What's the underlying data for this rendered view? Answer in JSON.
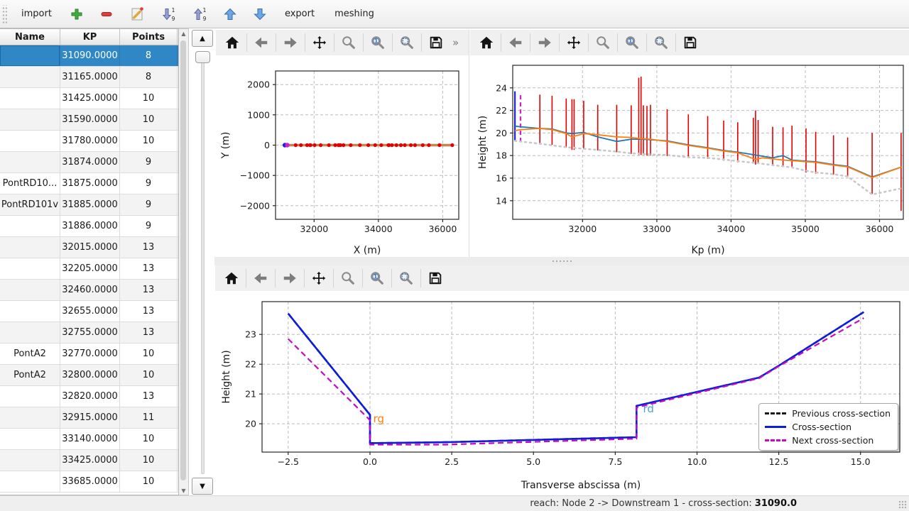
{
  "app_toolbar": {
    "import_label": "import",
    "export_label": "export",
    "meshing_label": "meshing",
    "icon_buttons": [
      "add",
      "remove",
      "edit",
      "sort-descending",
      "sort-ascending",
      "move-up",
      "move-down"
    ]
  },
  "table": {
    "columns": [
      "Name",
      "KP",
      "Points"
    ],
    "selected_index": 0,
    "selection_color": "#2f88c5",
    "rows": [
      {
        "name": "",
        "kp": "31090.0000",
        "points": "8"
      },
      {
        "name": "",
        "kp": "31165.0000",
        "points": "8"
      },
      {
        "name": "",
        "kp": "31425.0000",
        "points": "10"
      },
      {
        "name": "",
        "kp": "31590.0000",
        "points": "10"
      },
      {
        "name": "",
        "kp": "31780.0000",
        "points": "10"
      },
      {
        "name": "",
        "kp": "31874.0000",
        "points": "9"
      },
      {
        "name": "PontRD10...",
        "kp": "31875.0000",
        "points": "9"
      },
      {
        "name": "PontRD101v",
        "kp": "31885.0000",
        "points": "9"
      },
      {
        "name": "",
        "kp": "31886.0000",
        "points": "9"
      },
      {
        "name": "",
        "kp": "32015.0000",
        "points": "13"
      },
      {
        "name": "",
        "kp": "32205.0000",
        "points": "13"
      },
      {
        "name": "",
        "kp": "32460.0000",
        "points": "13"
      },
      {
        "name": "",
        "kp": "32655.0000",
        "points": "13"
      },
      {
        "name": "",
        "kp": "32755.0000",
        "points": "13"
      },
      {
        "name": "PontA2",
        "kp": "32770.0000",
        "points": "10"
      },
      {
        "name": "PontA2",
        "kp": "32800.0000",
        "points": "10"
      },
      {
        "name": "",
        "kp": "32820.0000",
        "points": "13"
      },
      {
        "name": "",
        "kp": "32915.0000",
        "points": "11"
      },
      {
        "name": "",
        "kp": "33140.0000",
        "points": "10"
      },
      {
        "name": "",
        "kp": "33425.0000",
        "points": "10"
      },
      {
        "name": "",
        "kp": "33685.0000",
        "points": "10"
      }
    ]
  },
  "plot_toolbar": {
    "buttons": [
      "home",
      "back",
      "forward",
      "pan",
      "zoom",
      "zoom-one",
      "zoom-rect",
      "save"
    ],
    "overflow_label": "»"
  },
  "status_bar": {
    "label": "reach: Node 2 -> Downstream 1 - cross-section:",
    "value": "31090.0"
  },
  "chart_data": [
    {
      "id": "plan-view",
      "type": "line",
      "xlabel": "X (m)",
      "ylabel": "Y (m)",
      "xlim": [
        30800,
        36500
      ],
      "ylim": [
        -2450,
        2450
      ],
      "xticks": [
        [
          32000,
          "32000"
        ],
        [
          34000,
          "34000"
        ],
        [
          36000,
          "36000"
        ]
      ],
      "yticks": [
        [
          -2000,
          "−2000"
        ],
        [
          -1000,
          "−1000"
        ],
        [
          0,
          "0"
        ],
        [
          1000,
          "1000"
        ],
        [
          2000,
          "2000"
        ]
      ],
      "grid": true,
      "series": [
        {
          "name": "river-axis-casing",
          "type": "line",
          "color": "#6e87a8",
          "width": 3.5,
          "points": [
            [
              31090,
              0
            ],
            [
              36300,
              0
            ]
          ]
        },
        {
          "name": "river-axis",
          "type": "line",
          "color": "#ff7f0e",
          "width": 2,
          "points": [
            [
              31090,
              0
            ],
            [
              36300,
              0
            ]
          ]
        },
        {
          "name": "cross-section-markers",
          "type": "scatter",
          "color": "#e40000",
          "r": 2.6,
          "y": 0,
          "x": [
            31425,
            31590,
            31780,
            31874,
            31886,
            32015,
            32205,
            32460,
            32655,
            32755,
            32790,
            32820,
            32915,
            33140,
            33425,
            33685,
            33900,
            34090,
            34310,
            34330,
            34420,
            34560,
            34700,
            34820,
            35010,
            35140,
            35380,
            35570,
            35900,
            36300
          ]
        },
        {
          "name": "selected-section-marker",
          "type": "scatter",
          "color": "#2222dd",
          "r": 3.2,
          "y": 0,
          "x": [
            31090
          ]
        },
        {
          "name": "next-section-marker",
          "type": "scatter",
          "color": "#cc22cc",
          "r": 3.2,
          "y": 0,
          "x": [
            31165
          ]
        }
      ]
    },
    {
      "id": "longitudinal-profile",
      "type": "line",
      "xlabel": "Kp (m)",
      "ylabel": "Height (m)",
      "xlim": [
        31060,
        36320
      ],
      "ylim": [
        12.35,
        26.0
      ],
      "xticks": [
        [
          32000,
          "32000"
        ],
        [
          33000,
          "33000"
        ],
        [
          34000,
          "34000"
        ],
        [
          35000,
          "35000"
        ],
        [
          36000,
          "36000"
        ]
      ],
      "yticks": [
        [
          14,
          "14"
        ],
        [
          16,
          "16"
        ],
        [
          18,
          "18"
        ],
        [
          20,
          "20"
        ],
        [
          22,
          "22"
        ],
        [
          24,
          "24"
        ]
      ],
      "grid": true,
      "series": [
        {
          "name": "cross-section-extents",
          "type": "vlines",
          "color": "#e40000",
          "width": 1.6,
          "lines": [
            [
              31425,
              19.1,
              23.4
            ],
            [
              31590,
              18.95,
              23.3
            ],
            [
              31780,
              18.7,
              23.05
            ],
            [
              31858,
              18.5,
              23.0
            ],
            [
              31886,
              18.5,
              23.0
            ],
            [
              32015,
              18.6,
              22.85
            ],
            [
              32205,
              18.45,
              22.5
            ],
            [
              32460,
              18.3,
              22.5
            ],
            [
              32655,
              18.15,
              22.45
            ],
            [
              32758,
              18.05,
              24.9
            ],
            [
              32788,
              18.05,
              25.0
            ],
            [
              32820,
              18.05,
              22.45
            ],
            [
              32868,
              18.0,
              22.4
            ],
            [
              32915,
              18.0,
              22.5
            ],
            [
              33140,
              17.95,
              22.1
            ],
            [
              33425,
              17.8,
              21.65
            ],
            [
              33685,
              17.7,
              21.5
            ],
            [
              33900,
              17.55,
              21.1
            ],
            [
              34090,
              17.4,
              20.95
            ],
            [
              34300,
              17.35,
              21.35
            ],
            [
              34330,
              17.2,
              22.0
            ],
            [
              34365,
              17.3,
              21.15
            ],
            [
              34560,
              17.1,
              20.55
            ],
            [
              34700,
              17.0,
              20.5
            ],
            [
              34820,
              16.9,
              20.65
            ],
            [
              35010,
              16.5,
              20.4
            ],
            [
              35140,
              16.4,
              20.1
            ],
            [
              35380,
              16.3,
              19.8
            ],
            [
              35570,
              16.1,
              19.6
            ],
            [
              35900,
              14.6,
              20.0
            ],
            [
              36290,
              13.1,
              20.0
            ]
          ]
        },
        {
          "name": "selected-section-extent",
          "type": "vlines",
          "color": "#2222dd",
          "width": 2.2,
          "lines": [
            [
              31090,
              19.3,
              23.7
            ]
          ]
        },
        {
          "name": "next-section-extent",
          "type": "vlines",
          "color": "#cc22cc",
          "width": 2.2,
          "dash": "6 4",
          "lines": [
            [
              31165,
              19.2,
              23.5
            ]
          ]
        },
        {
          "name": "bed-level",
          "type": "line",
          "color": "#c8c8c8",
          "width": 2.6,
          "dash": "2 5",
          "cap": "round",
          "points": [
            [
              31090,
              19.3
            ],
            [
              31425,
              19.05
            ],
            [
              31780,
              18.75
            ],
            [
              32015,
              18.6
            ],
            [
              32205,
              18.5
            ],
            [
              32460,
              18.35
            ],
            [
              32655,
              18.2
            ],
            [
              32915,
              18.1
            ],
            [
              33140,
              18.05
            ],
            [
              33425,
              17.85
            ],
            [
              33685,
              17.8
            ],
            [
              33900,
              17.65
            ],
            [
              34090,
              17.5
            ],
            [
              34330,
              17.35
            ],
            [
              34560,
              17.15
            ],
            [
              34700,
              17.05
            ],
            [
              34820,
              16.95
            ],
            [
              35010,
              16.65
            ],
            [
              35140,
              16.5
            ],
            [
              35380,
              16.35
            ],
            [
              35570,
              16.15
            ],
            [
              35900,
              14.55
            ],
            [
              36300,
              15.1
            ]
          ]
        },
        {
          "name": "left-bank",
          "type": "line",
          "color": "#1f77b4",
          "width": 1.8,
          "points": [
            [
              31090,
              20.6
            ],
            [
              31165,
              20.55
            ],
            [
              31425,
              20.4
            ],
            [
              31590,
              20.35
            ],
            [
              31780,
              20.0
            ],
            [
              31858,
              19.95
            ],
            [
              32015,
              20.05
            ],
            [
              32205,
              19.65
            ],
            [
              32460,
              19.25
            ],
            [
              32655,
              19.45
            ],
            [
              32790,
              19.45
            ],
            [
              32915,
              19.4
            ],
            [
              33140,
              19.3
            ],
            [
              33425,
              18.95
            ],
            [
              33685,
              18.7
            ],
            [
              33900,
              18.45
            ],
            [
              34090,
              18.3
            ],
            [
              34330,
              18.05
            ],
            [
              34420,
              17.95
            ],
            [
              34560,
              17.8
            ],
            [
              34700,
              18.0
            ],
            [
              34820,
              17.6
            ],
            [
              35010,
              17.5
            ],
            [
              35140,
              17.45
            ],
            [
              35380,
              17.2
            ],
            [
              35570,
              17.05
            ],
            [
              35900,
              16.1
            ],
            [
              36300,
              17.0
            ]
          ]
        },
        {
          "name": "right-bank",
          "type": "line",
          "color": "#ff7f0e",
          "width": 1.8,
          "points": [
            [
              31090,
              20.2
            ],
            [
              31165,
              20.3
            ],
            [
              31425,
              20.4
            ],
            [
              31590,
              20.3
            ],
            [
              31780,
              19.95
            ],
            [
              31858,
              19.65
            ],
            [
              32015,
              19.95
            ],
            [
              32205,
              19.85
            ],
            [
              32460,
              19.65
            ],
            [
              32655,
              19.6
            ],
            [
              32790,
              19.5
            ],
            [
              32915,
              19.45
            ],
            [
              33140,
              19.25
            ],
            [
              33425,
              18.9
            ],
            [
              33685,
              18.65
            ],
            [
              33900,
              18.4
            ],
            [
              34090,
              18.25
            ],
            [
              34330,
              17.65
            ],
            [
              34420,
              17.8
            ],
            [
              34560,
              17.7
            ],
            [
              34700,
              17.6
            ],
            [
              34820,
              17.55
            ],
            [
              35010,
              17.45
            ],
            [
              35140,
              17.4
            ],
            [
              35380,
              17.15
            ],
            [
              35570,
              17.0
            ],
            [
              35900,
              16.05
            ],
            [
              36300,
              17.0
            ]
          ]
        }
      ]
    },
    {
      "id": "cross-section-view",
      "type": "line",
      "xlabel": "Transverse abscissa (m)",
      "ylabel": "Height (m)",
      "xlim": [
        -3.3,
        16.2
      ],
      "ylim": [
        19.05,
        24.1
      ],
      "xticks": [
        [
          -2.5,
          "−2.5"
        ],
        [
          0,
          "0.0"
        ],
        [
          2.5,
          "2.5"
        ],
        [
          5,
          "5.0"
        ],
        [
          7.5,
          "7.5"
        ],
        [
          10,
          "10.0"
        ],
        [
          12.5,
          "12.5"
        ],
        [
          15,
          "15.0"
        ]
      ],
      "yticks": [
        [
          20,
          "20"
        ],
        [
          21,
          "21"
        ],
        [
          22,
          "22"
        ],
        [
          23,
          "23"
        ]
      ],
      "grid": true,
      "texts": [
        {
          "x": 0.1,
          "y": 20.05,
          "text": "rg",
          "color": "#ff7f0e",
          "size": 15
        },
        {
          "x": 8.35,
          "y": 20.38,
          "text": "rd",
          "color": "#4f9fd4",
          "size": 15
        }
      ],
      "series": [
        {
          "name": "previous-cross-section",
          "type": "line",
          "color": "#1a1a1a",
          "width": 2.6,
          "dash": "8 5",
          "points": [
            [
              -2.5,
              23.7
            ],
            [
              0,
              20.3
            ],
            [
              0,
              19.35
            ],
            [
              2.3,
              19.38
            ],
            [
              8.15,
              19.55
            ],
            [
              8.15,
              20.6
            ],
            [
              11.9,
              21.55
            ],
            [
              12.5,
              21.95
            ],
            [
              15.1,
              23.75
            ]
          ]
        },
        {
          "name": "current-cross-section",
          "type": "line",
          "color": "#0d1ddb",
          "width": 2.6,
          "points": [
            [
              -2.5,
              23.7
            ],
            [
              0,
              20.3
            ],
            [
              0,
              19.35
            ],
            [
              2.3,
              19.38
            ],
            [
              8.15,
              19.55
            ],
            [
              8.15,
              20.6
            ],
            [
              11.9,
              21.55
            ],
            [
              12.5,
              21.95
            ],
            [
              15.1,
              23.75
            ]
          ]
        },
        {
          "name": "next-cross-section",
          "type": "line",
          "color": "#c40ac4",
          "width": 2.2,
          "dash": "8 5",
          "points": [
            [
              -2.5,
              22.85
            ],
            [
              0,
              20.12
            ],
            [
              0,
              19.3
            ],
            [
              2.3,
              19.3
            ],
            [
              8.15,
              19.5
            ],
            [
              8.15,
              20.55
            ],
            [
              11.9,
              21.53
            ],
            [
              12.5,
              21.93
            ],
            [
              15.1,
              23.55
            ]
          ]
        }
      ],
      "legend": {
        "position": "lower right",
        "items": [
          {
            "label": "Previous cross-section",
            "color": "#1a1a1a",
            "dash": true
          },
          {
            "label": "Cross-section",
            "color": "#0d1ddb",
            "dash": false
          },
          {
            "label": "Next cross-section",
            "color": "#c40ac4",
            "dash": true
          }
        ]
      }
    }
  ]
}
